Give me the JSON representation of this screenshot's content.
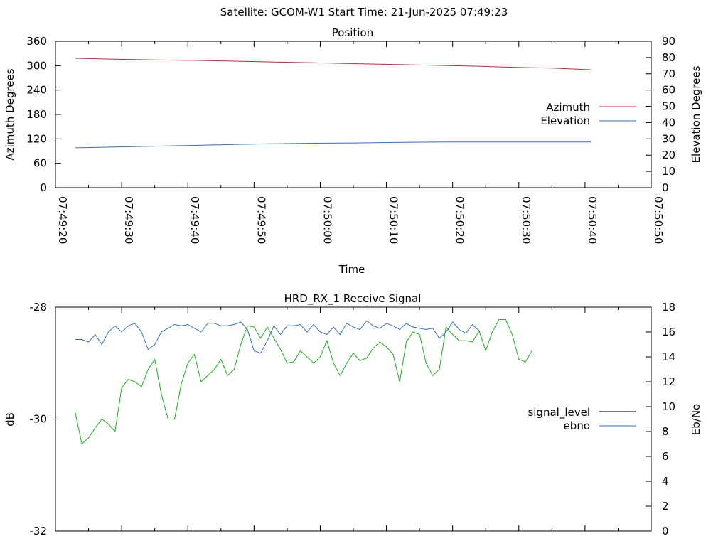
{
  "title": "Satellite: GCOM-W1    Start Time: 21-Jun-2025 07:49:23",
  "chart_data": [
    {
      "type": "line",
      "title": "Position",
      "xlabel": "Time",
      "ylabel": "Azimuth Degrees",
      "y2label": "Elevation Degrees",
      "xlim": [
        "07:49:20",
        "07:50:50"
      ],
      "x_ticks": [
        "07:49:20",
        "07:49:30",
        "07:49:40",
        "07:49:50",
        "07:50:00",
        "07:50:10",
        "07:50:20",
        "07:50:30",
        "07:50:40",
        "07:50:50"
      ],
      "ylim": [
        0,
        360
      ],
      "y_ticks": [
        0,
        60,
        120,
        180,
        240,
        300,
        360
      ],
      "y2lim": [
        0,
        90
      ],
      "y2_ticks": [
        0,
        10,
        20,
        30,
        40,
        50,
        60,
        70,
        80,
        90
      ],
      "grid": false,
      "legend_position": "right",
      "x": [
        "07:49:23",
        "07:49:29",
        "07:49:35",
        "07:49:41",
        "07:49:47",
        "07:49:53",
        "07:49:59",
        "07:50:05",
        "07:50:11",
        "07:50:17",
        "07:50:23",
        "07:50:29",
        "07:50:35",
        "07:50:41"
      ],
      "series": [
        {
          "name": "Azimuth",
          "axis": "left",
          "color": "#a83245",
          "values": [
            318,
            316,
            314,
            313,
            311,
            309,
            307,
            305,
            303,
            301,
            299,
            296,
            294,
            290
          ]
        },
        {
          "name": "Elevation",
          "axis": "right",
          "color": "#3a6cb4",
          "values": [
            24.5,
            25.0,
            25.5,
            26.0,
            26.5,
            27.0,
            27.3,
            27.5,
            27.8,
            28.0,
            28.1,
            28.1,
            28.1,
            28.1
          ]
        }
      ]
    },
    {
      "type": "line",
      "title": "HRD_RX_1 Receive Signal",
      "ylabel": "dB",
      "y2label": "Eb/No",
      "xlim": [
        "07:49:20",
        "07:50:50"
      ],
      "ylim": [
        -32,
        -28
      ],
      "y_ticks": [
        -32,
        -30,
        -28
      ],
      "y2lim": [
        0,
        18
      ],
      "y2_ticks": [
        0,
        2,
        4,
        6,
        8,
        10,
        12,
        14,
        16,
        18
      ],
      "grid": false,
      "legend_position": "right",
      "x_start": "07:49:23",
      "x_step_seconds": 1,
      "series": [
        {
          "name": "signal_level",
          "axis": "left",
          "color": "#000000",
          "values": []
        },
        {
          "name": "ebno",
          "axis": "right",
          "color": "#3a6cb4",
          "values": [
            15.4,
            15.4,
            15.2,
            15.8,
            15.0,
            16.0,
            16.5,
            16.0,
            16.5,
            16.7,
            16.0,
            14.6,
            15.0,
            16.0,
            16.3,
            16.6,
            16.5,
            16.6,
            16.3,
            16.0,
            16.7,
            16.7,
            16.5,
            16.5,
            16.6,
            16.8,
            16.2,
            14.5,
            14.3,
            15.3,
            16.5,
            15.8,
            16.5,
            16.5,
            16.6,
            16.0,
            16.6,
            16.0,
            15.8,
            16.4,
            15.8,
            16.7,
            16.4,
            16.2,
            16.9,
            16.5,
            16.3,
            16.7,
            16.5,
            16.2,
            16.7,
            16.4,
            16.3,
            16.2,
            16.3,
            15.5,
            16.0,
            16.8,
            16.2,
            15.9,
            16.6,
            16.1
          ]
        },
        {
          "name": "",
          "axis": "right",
          "color": "#22aa22",
          "values": [
            9.5,
            7.0,
            7.5,
            8.3,
            9.0,
            8.6,
            8.0,
            11.5,
            12.2,
            12.0,
            11.6,
            13.0,
            13.8,
            11.0,
            9.0,
            9.0,
            11.8,
            13.5,
            14.2,
            12.0,
            12.5,
            13.0,
            13.8,
            12.5,
            13.0,
            15.0,
            16.5,
            16.4,
            15.5,
            16.4,
            15.5,
            14.6,
            13.5,
            13.6,
            14.5,
            14.0,
            13.5,
            14.0,
            15.3,
            13.5,
            12.5,
            13.5,
            14.3,
            13.7,
            13.9,
            14.7,
            15.2,
            14.8,
            14.2,
            12.0,
            15.2,
            16.0,
            15.8,
            13.5,
            12.5,
            13.0,
            16.4,
            15.8,
            15.3,
            15.3,
            15.2,
            16.1,
            14.5,
            16.0,
            17.0,
            17.0,
            15.8,
            13.8,
            13.6,
            14.5
          ]
        }
      ]
    }
  ]
}
